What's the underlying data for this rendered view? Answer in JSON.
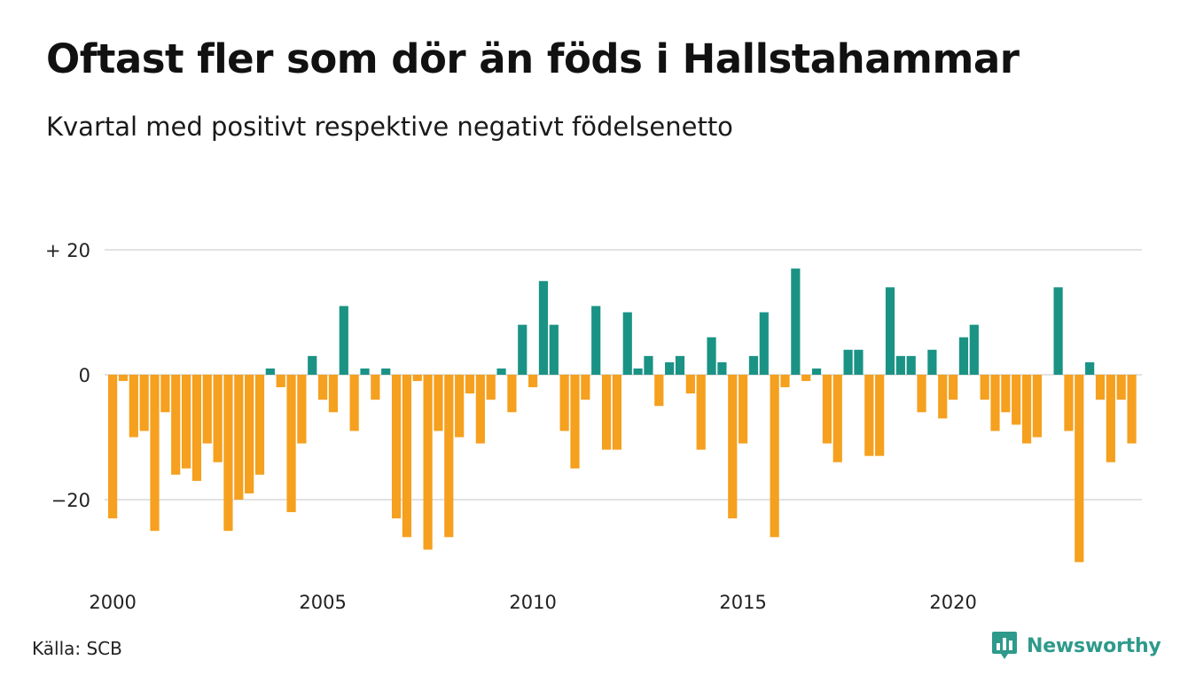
{
  "title": "Oftast fler som dör än föds i Hallstahammar",
  "subtitle": "Kvartal med positivt respektive negativt födelsenetto",
  "source": "Källa: SCB",
  "brand": "Newsworthy",
  "colors": {
    "positive": "#1a9385",
    "negative": "#f5a01e",
    "grid": "#e2e2e2",
    "brand": "#2e9a8b"
  },
  "chart_data": {
    "type": "bar",
    "title": "Oftast fler som dör än föds i Hallstahammar",
    "subtitle": "Kvartal med positivt respektive negativt födelsenetto",
    "start_year": 2000,
    "frequency": "quarterly",
    "ylim": [
      -31,
      20
    ],
    "yticks": [
      {
        "value": 20,
        "label": "+ 20"
      },
      {
        "value": 0,
        "label": "0"
      },
      {
        "value": -20,
        "label": "−20"
      }
    ],
    "xticks": [
      "2000",
      "2005",
      "2010",
      "2015",
      "2020"
    ],
    "grid": true,
    "values": [
      -23,
      -1,
      -10,
      -9,
      -25,
      -6,
      -16,
      -15,
      -17,
      -11,
      -14,
      -25,
      -20,
      -19,
      -16,
      1,
      -2,
      -22,
      -11,
      3,
      -4,
      -6,
      11,
      -9,
      1,
      -4,
      1,
      -23,
      -26,
      -1,
      -28,
      -9,
      -26,
      -10,
      -3,
      -11,
      -4,
      1,
      -6,
      8,
      -2,
      15,
      8,
      -9,
      -15,
      -4,
      11,
      -12,
      -12,
      10,
      1,
      3,
      -5,
      2,
      3,
      -3,
      -12,
      6,
      2,
      -23,
      -11,
      3,
      10,
      -26,
      -2,
      17,
      -1,
      1,
      -11,
      -14,
      4,
      4,
      -13,
      -13,
      14,
      3,
      3,
      -6,
      4,
      -7,
      -4,
      6,
      8,
      -4,
      -9,
      -6,
      -8,
      -11,
      -10,
      0,
      14,
      -9,
      -30,
      2,
      -4,
      -14,
      -4,
      -11
    ]
  }
}
